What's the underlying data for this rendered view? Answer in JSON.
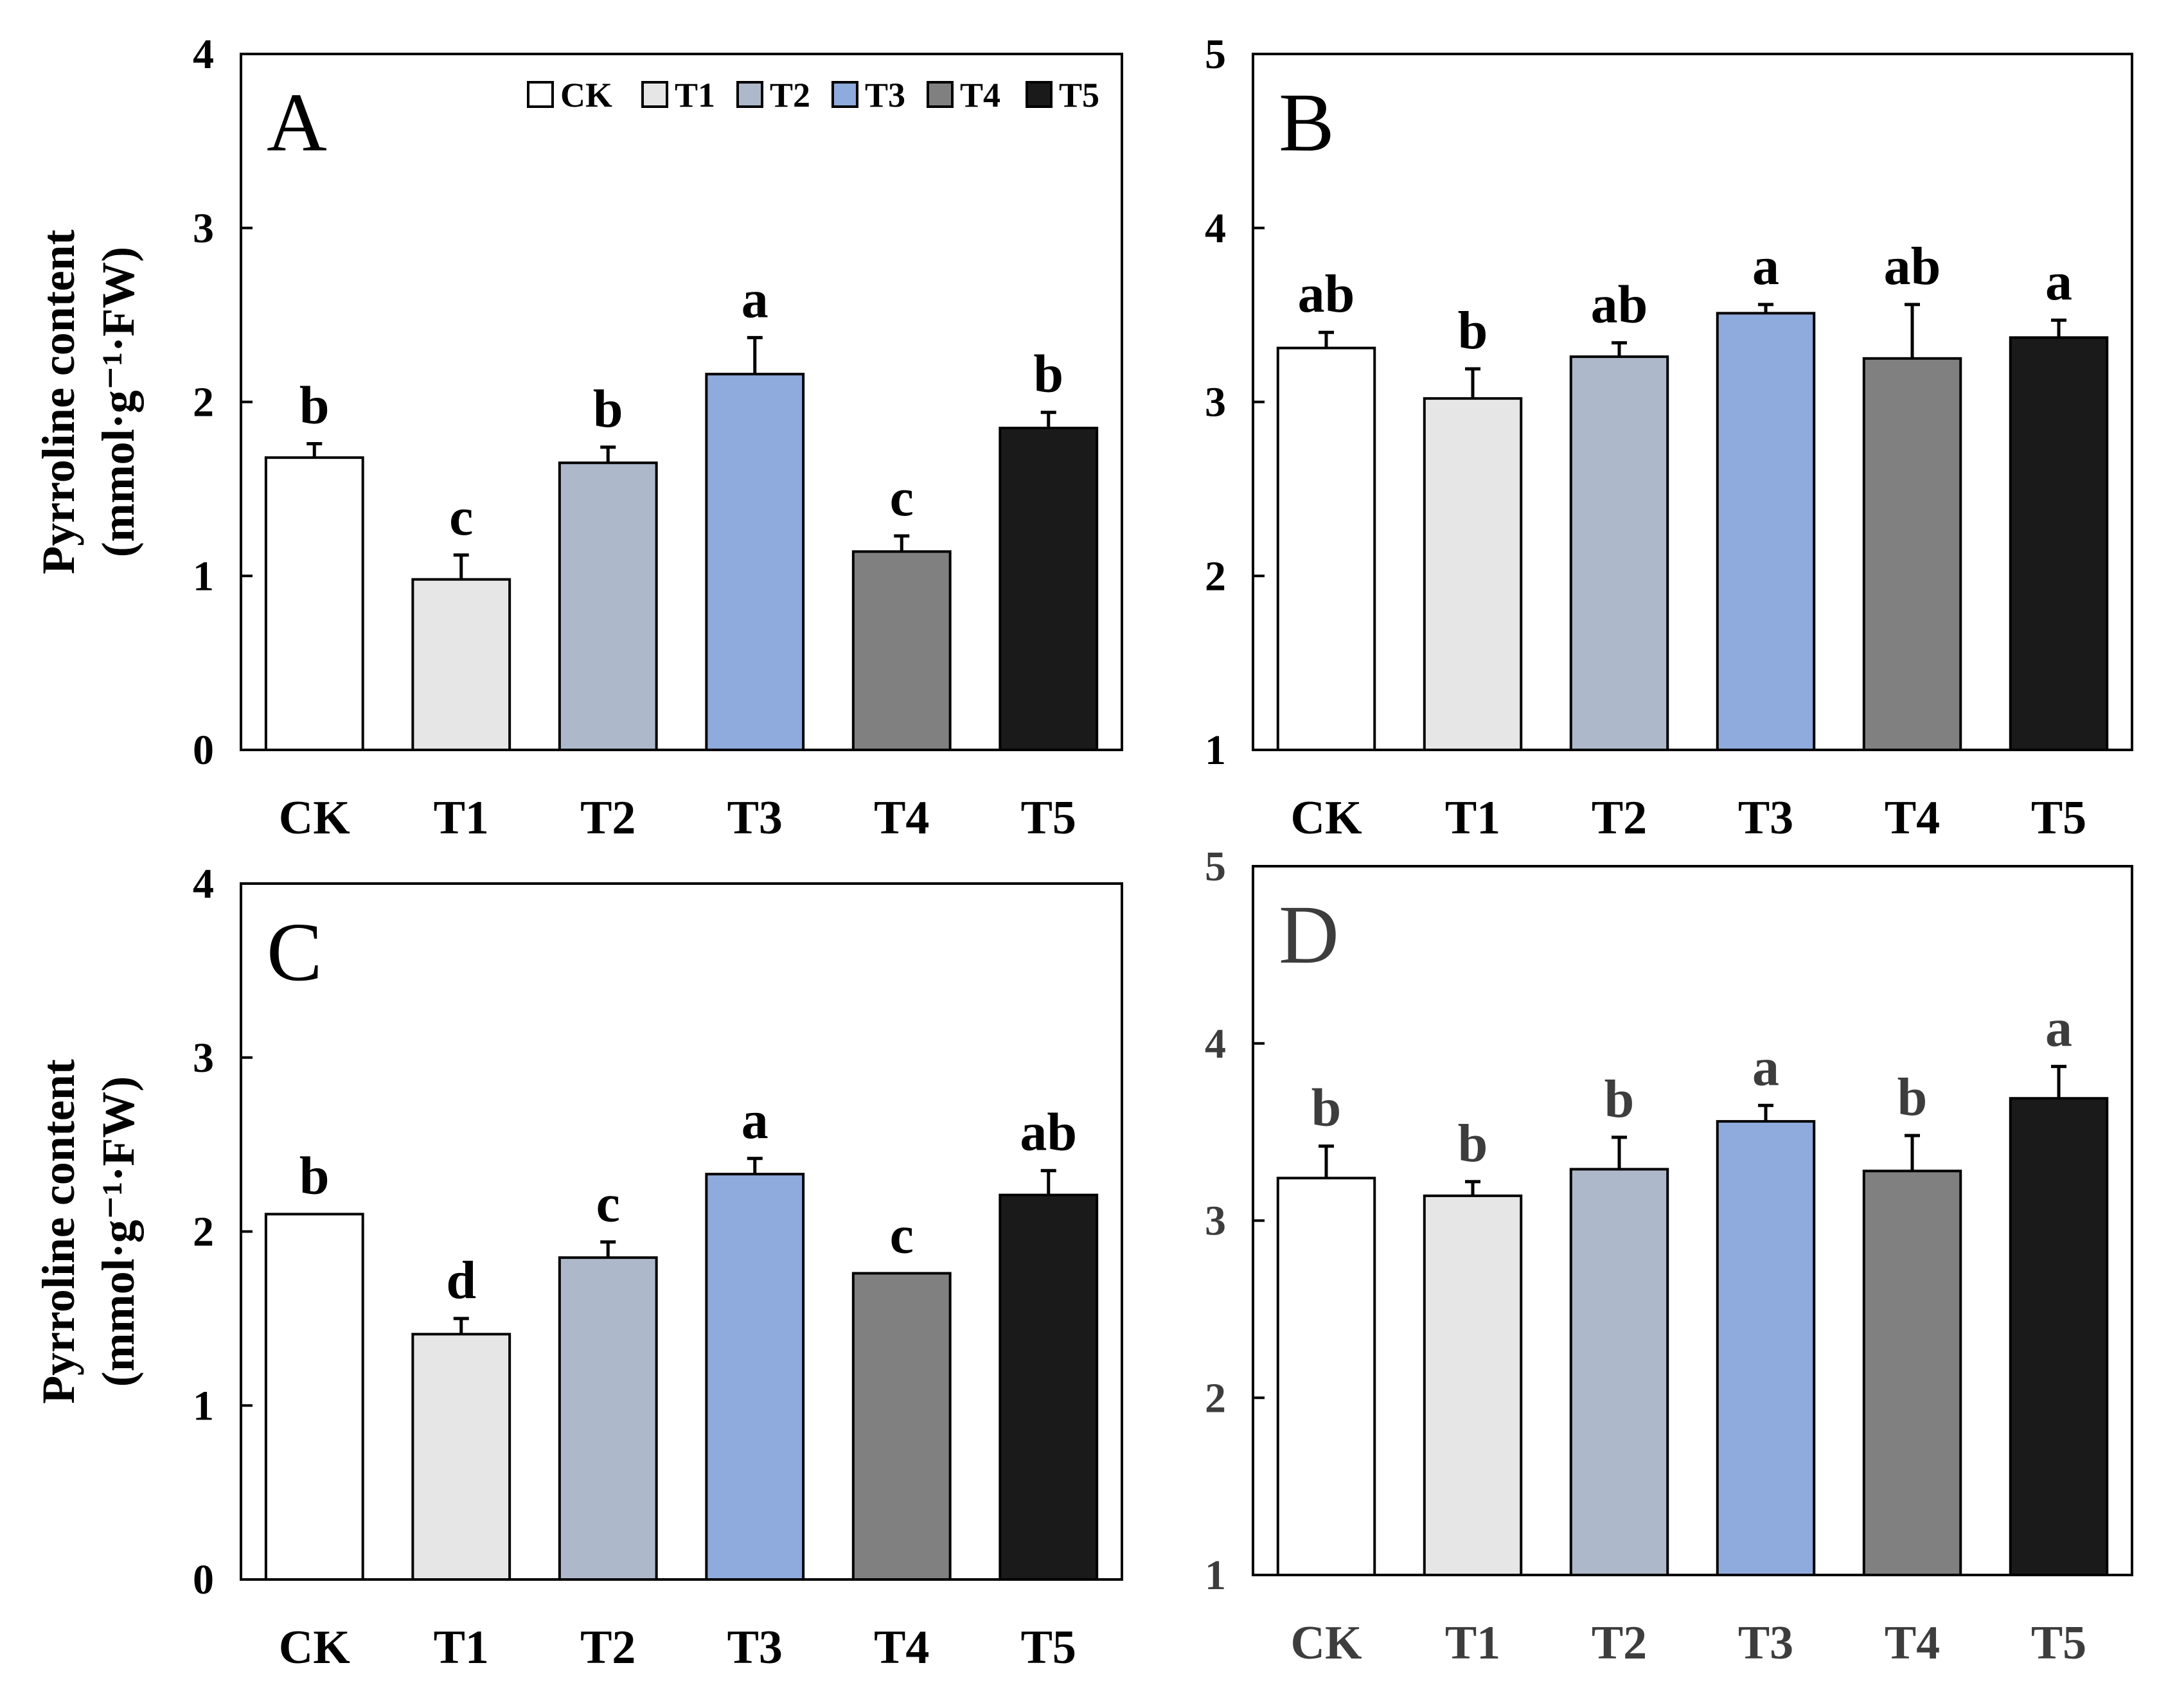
{
  "chart_data": [
    {
      "type": "bar",
      "panel": "A",
      "categories": [
        "CK",
        "T1",
        "T2",
        "T3",
        "T4",
        "T5"
      ],
      "values": [
        1.68,
        0.98,
        1.65,
        2.16,
        1.14,
        1.85
      ],
      "errors": [
        0.08,
        0.14,
        0.09,
        0.21,
        0.09,
        0.09
      ],
      "significance": [
        "b",
        "c",
        "b",
        "a",
        "c",
        "b"
      ],
      "ylim": [
        0,
        4
      ],
      "yticks": [
        0,
        1,
        2,
        3,
        4
      ],
      "ylabel_line1": "Pyrroline content",
      "ylabel_line2": "(mmol·g⁻¹·FW)"
    },
    {
      "type": "bar",
      "panel": "B",
      "categories": [
        "CK",
        "T1",
        "T2",
        "T3",
        "T4",
        "T5"
      ],
      "values": [
        3.31,
        3.02,
        3.26,
        3.51,
        3.25,
        3.37
      ],
      "errors": [
        0.09,
        0.17,
        0.08,
        0.05,
        0.31,
        0.1
      ],
      "significance": [
        "ab",
        "b",
        "ab",
        "a",
        "ab",
        "a"
      ],
      "ylim": [
        1,
        5
      ],
      "yticks": [
        1,
        2,
        3,
        4,
        5
      ]
    },
    {
      "type": "bar",
      "panel": "C",
      "categories": [
        "CK",
        "T1",
        "T2",
        "T3",
        "T4",
        "T5"
      ],
      "values": [
        2.1,
        1.41,
        1.85,
        2.33,
        1.76,
        2.21
      ],
      "errors": [
        0.0,
        0.09,
        0.09,
        0.09,
        0.0,
        0.14
      ],
      "significance": [
        "b",
        "d",
        "c",
        "a",
        "c",
        "ab"
      ],
      "ylim": [
        0,
        4
      ],
      "yticks": [
        0,
        1,
        2,
        3,
        4
      ],
      "ylabel_line1": "Pyrroline content",
      "ylabel_line2": "(mmol·g⁻¹·FW)"
    },
    {
      "type": "bar",
      "panel": "D",
      "categories": [
        "CK",
        "T1",
        "T2",
        "T3",
        "T4",
        "T5"
      ],
      "values": [
        3.24,
        3.14,
        3.29,
        3.56,
        3.28,
        3.69
      ],
      "errors": [
        0.18,
        0.08,
        0.18,
        0.09,
        0.2,
        0.18
      ],
      "significance": [
        "b",
        "b",
        "b",
        "a",
        "b",
        "a"
      ],
      "ylim": [
        1,
        5
      ],
      "yticks": [
        1,
        2,
        3,
        4,
        5
      ]
    }
  ],
  "legend": [
    {
      "label": "CK",
      "color": "#ffffff"
    },
    {
      "label": "T1",
      "color": "#e6e6e6"
    },
    {
      "label": "T2",
      "color": "#adb9ca"
    },
    {
      "label": "T3",
      "color": "#8faadc"
    },
    {
      "label": "T4",
      "color": "#808080"
    },
    {
      "label": "T5",
      "color": "#1a1a1a"
    }
  ]
}
